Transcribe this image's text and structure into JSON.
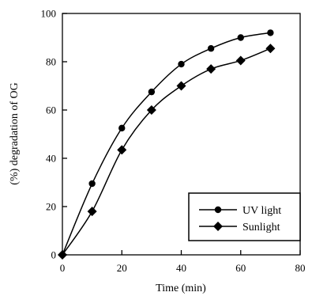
{
  "chart_data": {
    "type": "line",
    "xlabel": "Time (min)",
    "ylabel": "(%) degradation of OG",
    "xlim": [
      0,
      80
    ],
    "ylim": [
      0,
      100
    ],
    "xticks": [
      "0",
      "20",
      "40",
      "60",
      "80"
    ],
    "yticks": [
      "0",
      "20",
      "40",
      "60",
      "80",
      "100"
    ],
    "grid": false,
    "legend_position": "bottom-right",
    "series": [
      {
        "name": "UV light",
        "marker": "circle",
        "x": [
          0,
          10,
          20,
          30,
          40,
          50,
          60,
          70
        ],
        "y": [
          0,
          29.5,
          52.5,
          67.5,
          79,
          85.5,
          90,
          92
        ]
      },
      {
        "name": "Sunlight",
        "marker": "diamond",
        "x": [
          0,
          10,
          20,
          30,
          40,
          50,
          60,
          70
        ],
        "y": [
          0,
          18,
          43.5,
          60,
          70,
          77,
          80.5,
          85.5
        ]
      }
    ]
  },
  "colors": {
    "line": "#000000",
    "marker": "#000000",
    "background": "#ffffff"
  }
}
